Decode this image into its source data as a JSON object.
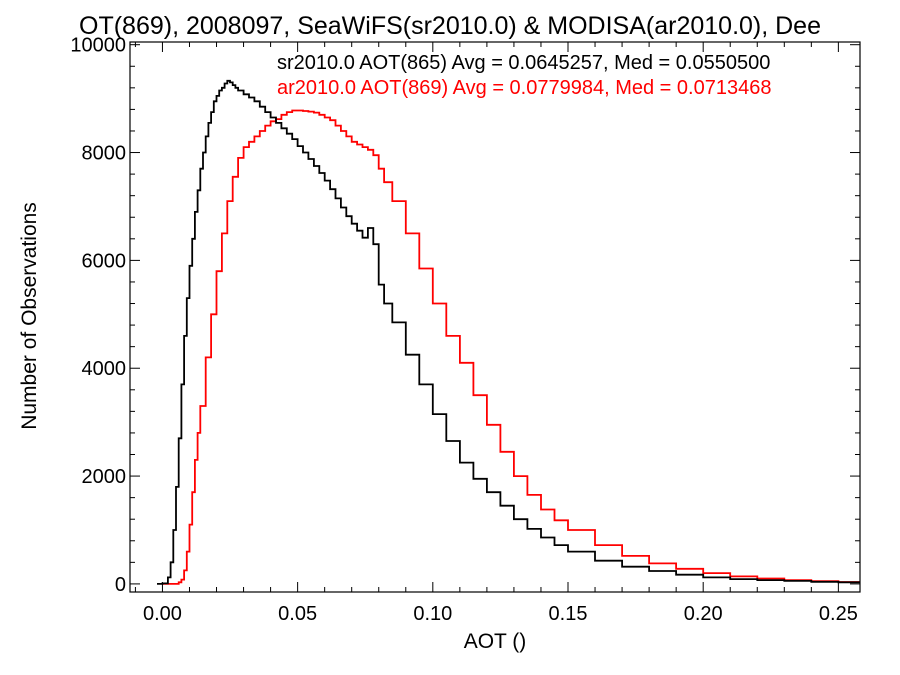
{
  "chart_data": {
    "type": "line",
    "title": "OT(869), 2008097, SeaWiFS(sr2010.0) & MODISA(ar2010.0), Dee",
    "xlabel": "AOT ()",
    "ylabel": "Number of Observations",
    "xlim": [
      -0.012,
      0.258
    ],
    "ylim": [
      -150,
      10050
    ],
    "x_ticks": [
      0.0,
      0.05,
      0.1,
      0.15,
      0.2,
      0.25
    ],
    "x_tick_labels": [
      "0.00",
      "0.05",
      "0.10",
      "0.15",
      "0.20",
      "0.25"
    ],
    "y_ticks": [
      0,
      2000,
      4000,
      6000,
      8000,
      10000
    ],
    "y_tick_labels": [
      "0",
      "2000",
      "4000",
      "6000",
      "8000",
      "10000"
    ],
    "grid": false,
    "legend": "top-right",
    "series": [
      {
        "name": "sr2010.0 AOT(865) Avg = 0.0645257, Med = 0.0550500",
        "color": "#000000",
        "x": [
          -0.002,
          0.0,
          0.002,
          0.003,
          0.004,
          0.005,
          0.006,
          0.007,
          0.008,
          0.009,
          0.01,
          0.011,
          0.012,
          0.013,
          0.014,
          0.015,
          0.016,
          0.017,
          0.018,
          0.019,
          0.02,
          0.021,
          0.022,
          0.023,
          0.024,
          0.025,
          0.026,
          0.027,
          0.028,
          0.03,
          0.032,
          0.034,
          0.036,
          0.038,
          0.04,
          0.042,
          0.044,
          0.046,
          0.048,
          0.05,
          0.052,
          0.054,
          0.056,
          0.058,
          0.06,
          0.062,
          0.064,
          0.066,
          0.068,
          0.07,
          0.072,
          0.074,
          0.076,
          0.078,
          0.08,
          0.082,
          0.085,
          0.09,
          0.095,
          0.1,
          0.105,
          0.11,
          0.115,
          0.12,
          0.125,
          0.13,
          0.135,
          0.14,
          0.145,
          0.15,
          0.16,
          0.17,
          0.18,
          0.19,
          0.2,
          0.21,
          0.22,
          0.23,
          0.24,
          0.25,
          0.258
        ],
        "values": [
          0,
          10,
          120,
          400,
          1000,
          1800,
          2700,
          3700,
          4600,
          5300,
          5900,
          6400,
          6900,
          7300,
          7700,
          8000,
          8300,
          8550,
          8750,
          8950,
          9050,
          9150,
          9200,
          9280,
          9330,
          9300,
          9250,
          9200,
          9150,
          9080,
          9020,
          8950,
          8850,
          8750,
          8650,
          8550,
          8450,
          8350,
          8250,
          8120,
          8000,
          7880,
          7750,
          7620,
          7480,
          7320,
          7150,
          6980,
          6820,
          6680,
          6550,
          6420,
          6600,
          6300,
          5550,
          5200,
          4850,
          4250,
          3700,
          3150,
          2650,
          2250,
          1950,
          1700,
          1450,
          1200,
          1020,
          860,
          720,
          600,
          430,
          320,
          240,
          170,
          120,
          90,
          70,
          55,
          40,
          30,
          20
        ]
      },
      {
        "name": "ar2010.0 AOT(869) Avg = 0.0779984, Med = 0.0713468",
        "color": "#ff0000",
        "x": [
          0.0,
          0.005,
          0.006,
          0.007,
          0.008,
          0.009,
          0.01,
          0.011,
          0.012,
          0.013,
          0.014,
          0.016,
          0.018,
          0.02,
          0.022,
          0.024,
          0.026,
          0.028,
          0.03,
          0.032,
          0.034,
          0.036,
          0.038,
          0.04,
          0.042,
          0.044,
          0.046,
          0.048,
          0.05,
          0.052,
          0.054,
          0.056,
          0.058,
          0.06,
          0.062,
          0.064,
          0.066,
          0.068,
          0.07,
          0.072,
          0.074,
          0.076,
          0.078,
          0.08,
          0.082,
          0.085,
          0.09,
          0.095,
          0.1,
          0.105,
          0.11,
          0.115,
          0.12,
          0.125,
          0.13,
          0.135,
          0.14,
          0.145,
          0.15,
          0.16,
          0.17,
          0.18,
          0.19,
          0.2,
          0.21,
          0.22,
          0.23,
          0.24,
          0.25,
          0.258
        ],
        "values": [
          0,
          0,
          30,
          80,
          250,
          600,
          1100,
          1700,
          2300,
          2800,
          3300,
          4200,
          5000,
          5800,
          6500,
          7100,
          7550,
          7900,
          8100,
          8200,
          8300,
          8400,
          8500,
          8580,
          8620,
          8700,
          8750,
          8780,
          8780,
          8770,
          8760,
          8740,
          8700,
          8650,
          8600,
          8500,
          8400,
          8300,
          8200,
          8150,
          8100,
          8050,
          7950,
          7700,
          7450,
          7100,
          6500,
          5850,
          5200,
          4600,
          4100,
          3500,
          2950,
          2450,
          2000,
          1650,
          1380,
          1180,
          1000,
          720,
          520,
          380,
          280,
          200,
          140,
          100,
          70,
          50,
          35,
          25
        ]
      }
    ]
  }
}
